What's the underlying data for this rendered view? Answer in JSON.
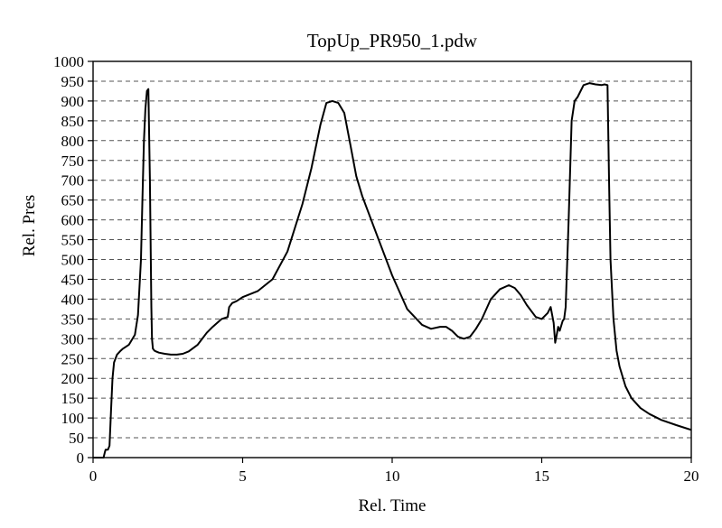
{
  "chart_data": {
    "type": "line",
    "title": "TopUp_PR950_1.pdw",
    "xlabel": "Rel. Time",
    "ylabel": "Rel. Pres",
    "xlim": [
      0,
      20
    ],
    "ylim": [
      0,
      1000
    ],
    "x_ticks": [
      0,
      5,
      10,
      15,
      20
    ],
    "y_ticks": [
      0,
      50,
      100,
      150,
      200,
      250,
      300,
      350,
      400,
      450,
      500,
      550,
      600,
      650,
      700,
      750,
      800,
      850,
      900,
      950,
      1000
    ],
    "grid": "horizontal dashed",
    "colors": {
      "line": "#000000",
      "grid": "#555555",
      "background": "#ffffff"
    },
    "series": [
      {
        "x": [
          0.0,
          0.35,
          0.4,
          0.42,
          0.5,
          0.55,
          0.6,
          0.65,
          0.7,
          0.8,
          0.9,
          1.0,
          1.2,
          1.4,
          1.5,
          1.6,
          1.65,
          1.7,
          1.75,
          1.8,
          1.85,
          1.9,
          1.93,
          1.95,
          1.97,
          2.0,
          2.05,
          2.1,
          2.2,
          2.4,
          2.6,
          2.8,
          3.0,
          3.2,
          3.5,
          3.8,
          4.0,
          4.3,
          4.5,
          4.55,
          4.6,
          4.65,
          4.8,
          5.0,
          5.5,
          6.0,
          6.5,
          7.0,
          7.3,
          7.6,
          7.8,
          8.0,
          8.2,
          8.4,
          8.6,
          8.8,
          9.0,
          9.5,
          10.0,
          10.5,
          11.0,
          11.3,
          11.6,
          11.8,
          12.0,
          12.2,
          12.4,
          12.6,
          12.8,
          13.0,
          13.3,
          13.6,
          13.9,
          14.1,
          14.3,
          14.5,
          14.8,
          15.0,
          15.2,
          15.3,
          15.4,
          15.45,
          15.5,
          15.55,
          15.6,
          15.7,
          15.75,
          15.8,
          15.9,
          16.0,
          16.1,
          16.2,
          16.4,
          16.6,
          16.8,
          17.0,
          17.1,
          17.2,
          17.25,
          17.3,
          17.4,
          17.5,
          17.6,
          17.8,
          18.0,
          18.3,
          18.6,
          19.0,
          19.5,
          20.0
        ],
        "y": [
          0,
          0,
          15,
          20,
          20,
          30,
          120,
          200,
          240,
          260,
          268,
          275,
          285,
          310,
          360,
          500,
          650,
          800,
          880,
          925,
          930,
          700,
          500,
          380,
          300,
          275,
          270,
          268,
          265,
          262,
          260,
          260,
          262,
          268,
          285,
          315,
          330,
          350,
          355,
          380,
          385,
          390,
          395,
          405,
          420,
          450,
          520,
          640,
          730,
          840,
          895,
          900,
          895,
          870,
          790,
          710,
          660,
          560,
          460,
          375,
          335,
          325,
          330,
          330,
          320,
          305,
          300,
          305,
          325,
          350,
          400,
          425,
          435,
          428,
          410,
          385,
          355,
          350,
          365,
          380,
          340,
          290,
          310,
          330,
          320,
          345,
          350,
          380,
          600,
          850,
          900,
          910,
          940,
          945,
          942,
          940,
          942,
          940,
          700,
          500,
          350,
          270,
          230,
          180,
          150,
          125,
          110,
          95,
          82,
          70
        ]
      }
    ]
  }
}
